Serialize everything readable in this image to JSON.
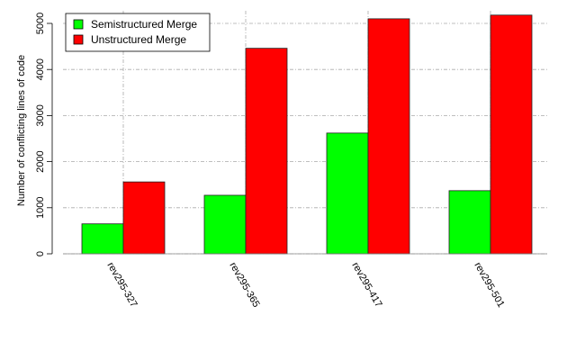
{
  "chart_data": {
    "type": "bar",
    "title": "",
    "xlabel": "",
    "ylabel": "Number of conflicting lines of code",
    "categories": [
      "rev295-327",
      "rev295-365",
      "rev295-417",
      "rev295-501"
    ],
    "series": [
      {
        "name": "Semistructured Merge",
        "color": "#00ff00",
        "values": [
          650,
          1270,
          2620,
          1370
        ]
      },
      {
        "name": "Unstructured Merge",
        "color": "#ff0000",
        "values": [
          1560,
          4460,
          5100,
          5180
        ]
      }
    ],
    "ylim": [
      0,
      5200
    ],
    "yticks": [
      0,
      1000,
      2000,
      3000,
      4000,
      5000
    ],
    "grid": true,
    "legend_position": "top-left"
  }
}
